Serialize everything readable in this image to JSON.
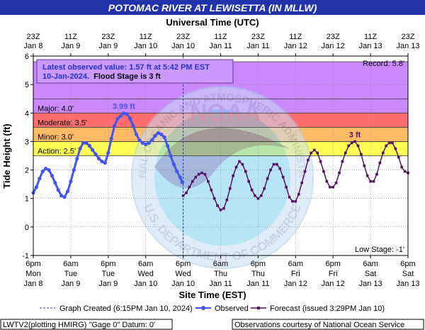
{
  "header": {
    "title": "POTOMAC RIVER AT LEWISETTA (IN MLLW)",
    "utc_axis_title": "Universal Time (UTC)",
    "est_axis_title": "Site Time (EST)",
    "y_axis_title": "Tide Height (ft)"
  },
  "annotations": {
    "latest_line1": "Latest observed value: 1.57 ft at 5:42 PM EST",
    "latest_line2_date": "10-Jan-2024.",
    "latest_line2_flood": "Flood Stage is 3 ft",
    "record": "Record: 5.8'",
    "low_stage": "Low Stage: -1'",
    "peak_observed": "3.99 ft",
    "peak_forecast": "3 ft"
  },
  "stages": [
    {
      "name": "Record",
      "from": 4.5,
      "to": 5.8,
      "label": "",
      "color": "#cc88ff"
    },
    {
      "name": "Major",
      "from": 4.0,
      "to": 4.5,
      "label": "Major: 4.0'",
      "color": "#cc88ff"
    },
    {
      "name": "Moderate",
      "from": 3.5,
      "to": 4.0,
      "label": "Moderate: 3.5'",
      "color": "#ff6e6e"
    },
    {
      "name": "Minor",
      "from": 3.0,
      "to": 3.5,
      "label": "Minor: 3.0'",
      "color": "#ffbb66"
    },
    {
      "name": "Action",
      "from": 2.5,
      "to": 3.0,
      "label": "Action: 2.5'",
      "color": "#ffff55"
    }
  ],
  "legend": {
    "graph_created": "Graph Created (6:15PM Jan 10, 2024)",
    "observed": "Observed",
    "forecast": "Forecast (issued 3:29PM Jan 10)"
  },
  "footer": {
    "left": "LWTV2(plotting HMIRG) \"Gage 0\" Datum: 0'",
    "right": "Observations courtesy of National Ocean Service"
  },
  "watermark": {
    "center_text": "NOAA",
    "top_arc": "NATIONAL OCEANIC AND ATMOSPHERIC ADMINISTRATION",
    "bottom_arc": "U.S. DEPARTMENT OF COMMERCE"
  },
  "colors": {
    "observed": "#4455ee",
    "forecast": "#551166",
    "title_bg": "#2233aa",
    "title_text": "#ffffff",
    "now_line": "#3344bb"
  },
  "chart_data": {
    "type": "line",
    "x_unit": "hours since Jan 8 6pm EST",
    "xlim": [
      0,
      120
    ],
    "ylim": [
      -1,
      6
    ],
    "y_ticks": [
      -1,
      0,
      1,
      2,
      3,
      4,
      5,
      6
    ],
    "now_x": 48,
    "utc_ticks": [
      {
        "x": 0,
        "time": "23Z",
        "date": "Jan 8"
      },
      {
        "x": 12,
        "time": "11Z",
        "date": "Jan 9"
      },
      {
        "x": 24,
        "time": "23Z",
        "date": "Jan 9"
      },
      {
        "x": 36,
        "time": "11Z",
        "date": "Jan 10"
      },
      {
        "x": 48,
        "time": "23Z",
        "date": "Jan 10"
      },
      {
        "x": 60,
        "time": "11Z",
        "date": "Jan 11"
      },
      {
        "x": 72,
        "time": "23Z",
        "date": "Jan 11"
      },
      {
        "x": 84,
        "time": "11Z",
        "date": "Jan 12"
      },
      {
        "x": 96,
        "time": "23Z",
        "date": "Jan 12"
      },
      {
        "x": 108,
        "time": "11Z",
        "date": "Jan 13"
      },
      {
        "x": 120,
        "time": "23Z",
        "date": "Jan 13"
      }
    ],
    "est_ticks": [
      {
        "x": 0,
        "time": "6pm",
        "day": "Mon",
        "date": "Jan 8"
      },
      {
        "x": 12,
        "time": "6am",
        "day": "Tue",
        "date": "Jan 9"
      },
      {
        "x": 24,
        "time": "6pm",
        "day": "Tue",
        "date": "Jan 9"
      },
      {
        "x": 36,
        "time": "6am",
        "day": "Wed",
        "date": "Jan 10"
      },
      {
        "x": 48,
        "time": "6pm",
        "day": "Wed",
        "date": "Jan 10"
      },
      {
        "x": 60,
        "time": "6am",
        "day": "Thu",
        "date": "Jan 11"
      },
      {
        "x": 72,
        "time": "6pm",
        "day": "Thu",
        "date": "Jan 11"
      },
      {
        "x": 84,
        "time": "6am",
        "day": "Fri",
        "date": "Jan 12"
      },
      {
        "x": 96,
        "time": "6pm",
        "day": "Fri",
        "date": "Jan 12"
      },
      {
        "x": 108,
        "time": "6am",
        "day": "Sat",
        "date": "Jan 13"
      },
      {
        "x": 120,
        "time": "6pm",
        "day": "Sat",
        "date": "Jan 13"
      }
    ],
    "series": [
      {
        "name": "Observed",
        "x": [
          0,
          1,
          2,
          3,
          4,
          5,
          6,
          7,
          8,
          9,
          10,
          11,
          12,
          13,
          14,
          15,
          16,
          17,
          18,
          19,
          20,
          21,
          22,
          23,
          24,
          25,
          26,
          27,
          28,
          29,
          30,
          31,
          32,
          33,
          34,
          35,
          36,
          37,
          38,
          39,
          40,
          41,
          42,
          43,
          44,
          45,
          46,
          47,
          47.7
        ],
        "y": [
          1.2,
          1.4,
          1.7,
          1.95,
          2.05,
          2.0,
          1.8,
          1.55,
          1.3,
          1.1,
          1.05,
          1.25,
          1.6,
          2.0,
          2.4,
          2.75,
          2.95,
          2.95,
          2.85,
          2.7,
          2.55,
          2.4,
          2.3,
          2.25,
          2.6,
          3.1,
          3.55,
          3.8,
          3.9,
          3.99,
          3.97,
          3.8,
          3.55,
          3.25,
          3.05,
          2.95,
          2.9,
          2.95,
          3.05,
          3.2,
          3.3,
          3.25,
          3.15,
          2.85,
          2.5,
          2.2,
          1.95,
          1.75,
          1.57
        ]
      },
      {
        "name": "Forecast",
        "x": [
          48,
          49,
          50,
          51,
          52,
          53,
          54,
          55,
          56,
          57,
          58,
          59,
          60,
          61,
          62,
          63,
          64,
          65,
          66,
          67,
          68,
          69,
          70,
          71,
          72,
          73,
          74,
          75,
          76,
          77,
          78,
          79,
          80,
          81,
          82,
          83,
          84,
          85,
          86,
          87,
          88,
          89,
          90,
          91,
          92,
          93,
          94,
          95,
          96,
          97,
          98,
          99,
          100,
          101,
          102,
          103,
          104,
          105,
          106,
          107,
          108,
          109,
          110,
          111,
          112,
          113,
          114,
          115,
          116,
          117,
          118,
          119,
          120
        ],
        "y": [
          1.1,
          1.2,
          1.4,
          1.6,
          1.75,
          1.85,
          1.9,
          1.85,
          1.6,
          1.3,
          1.0,
          0.75,
          0.6,
          0.65,
          0.95,
          1.35,
          1.8,
          2.1,
          2.3,
          2.2,
          1.95,
          1.6,
          1.3,
          1.1,
          1.0,
          1.1,
          1.35,
          1.7,
          2.0,
          2.2,
          2.2,
          2.05,
          1.75,
          1.4,
          1.05,
          0.9,
          0.9,
          1.15,
          1.55,
          1.95,
          2.35,
          2.6,
          2.7,
          2.6,
          2.3,
          1.95,
          1.6,
          1.4,
          1.4,
          1.55,
          1.9,
          2.3,
          2.6,
          2.85,
          2.95,
          3.0,
          2.85,
          2.55,
          2.15,
          1.8,
          1.6,
          1.6,
          1.85,
          2.25,
          2.6,
          2.85,
          2.95,
          2.95,
          2.75,
          2.45,
          2.1,
          1.95,
          1.9
        ]
      }
    ]
  }
}
